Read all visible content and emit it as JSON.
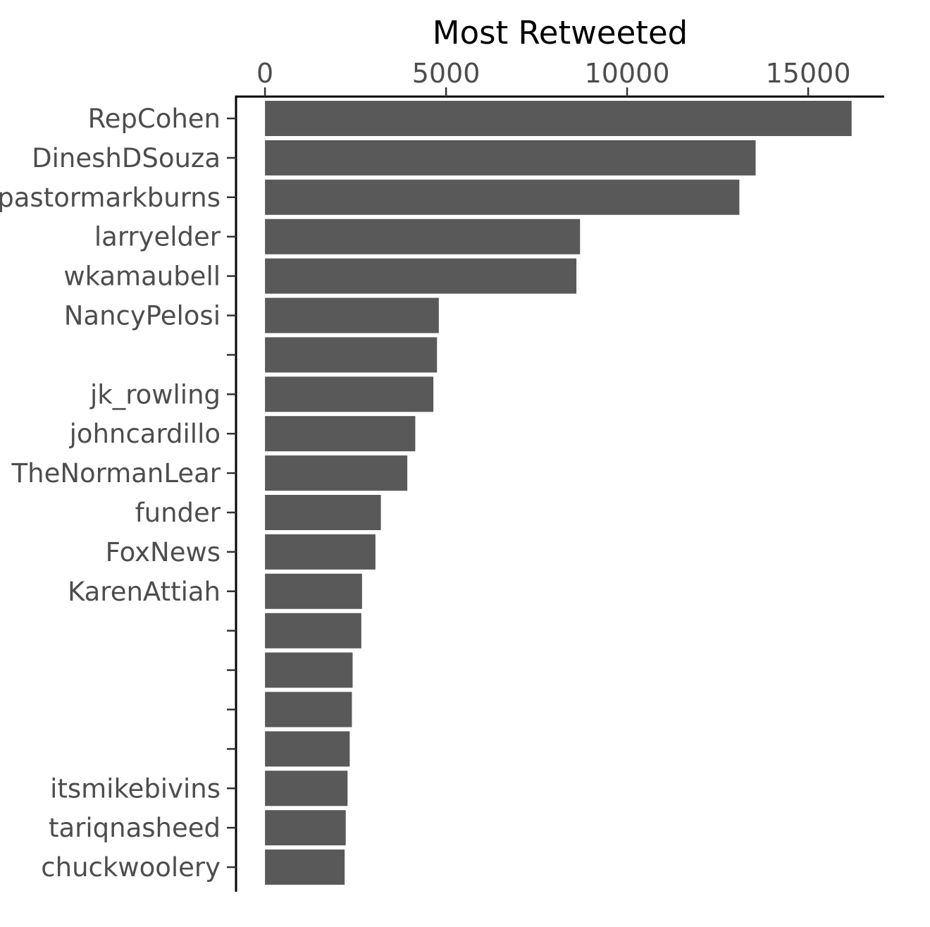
{
  "chart_data": {
    "type": "bar",
    "orientation": "horizontal",
    "title": "Most Retweeted",
    "xlabel": "",
    "ylabel": "",
    "x_axis_position": "top",
    "xlim": [
      -800,
      17100
    ],
    "x_ticks": [
      0,
      5000,
      10000,
      15000
    ],
    "x_tick_labels": [
      "0",
      "5000",
      "10000",
      "15000"
    ],
    "grid": false,
    "legend": "none",
    "bar_color": "#595959",
    "categories": [
      "RepCohen",
      "DineshDSouza",
      "pastormarkburns",
      "larryelder",
      "wkamaubell",
      "NancyPelosi",
      "",
      "jk_rowling",
      "johncardillo",
      "TheNormanLear",
      "funder",
      "FoxNews",
      "KarenAttiah",
      "",
      "",
      "",
      "",
      "itsmikebivins",
      "tariqnasheed",
      "chuckwoolery"
    ],
    "values": [
      16200,
      13550,
      13100,
      8700,
      8600,
      4800,
      4750,
      4650,
      4150,
      3930,
      3200,
      3050,
      2680,
      2660,
      2420,
      2400,
      2340,
      2280,
      2230,
      2200
    ]
  }
}
